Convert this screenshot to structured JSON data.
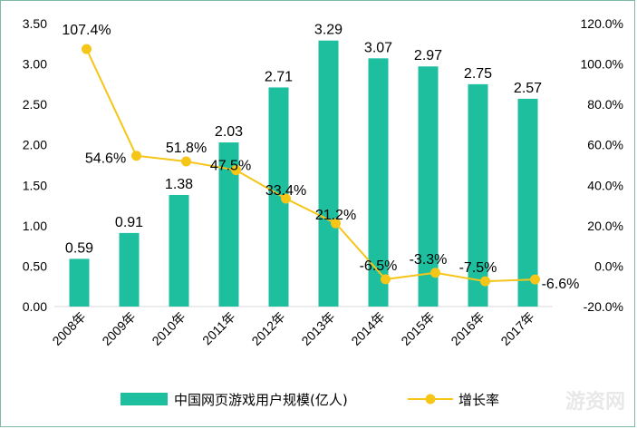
{
  "chart_data": {
    "type": "bar+line",
    "categories": [
      "2008年",
      "2009年",
      "2010年",
      "2011年",
      "2012年",
      "2013年",
      "2014年",
      "2015年",
      "2016年",
      "2017年"
    ],
    "series": [
      {
        "name": "中国网页游戏用户规模(亿人)",
        "type": "bar",
        "axis": "left",
        "values": [
          0.59,
          0.91,
          1.38,
          2.03,
          2.71,
          3.29,
          3.07,
          2.97,
          2.75,
          2.57
        ],
        "labels": [
          "0.59",
          "0.91",
          "1.38",
          "2.03",
          "2.71",
          "3.29",
          "3.07",
          "2.97",
          "2.75",
          "2.57"
        ],
        "color": "#1dbf9f"
      },
      {
        "name": "增长率",
        "type": "line",
        "axis": "right",
        "values": [
          107.4,
          54.6,
          51.8,
          47.5,
          33.4,
          21.2,
          -6.5,
          -3.3,
          -7.5,
          -6.6
        ],
        "labels": [
          "107.4%",
          "54.6%",
          "51.8%",
          "47.5%",
          "33.4%",
          "21.2%",
          "-6.5%",
          "-3.3%",
          "-7.5%",
          "-6.6%"
        ],
        "color": "#f5c518"
      }
    ],
    "y_left": {
      "ticks": [
        "0.00",
        "0.50",
        "1.00",
        "1.50",
        "2.00",
        "2.50",
        "3.00",
        "3.50"
      ],
      "ylim": [
        0,
        3.5
      ]
    },
    "y_right": {
      "ticks": [
        "-20.0%",
        "0.0%",
        "20.0%",
        "40.0%",
        "60.0%",
        "80.0%",
        "100.0%",
        "120.0%"
      ],
      "ylim": [
        -20,
        120
      ]
    },
    "grid": false,
    "legend_position": "bottom"
  },
  "watermark": "游资网"
}
